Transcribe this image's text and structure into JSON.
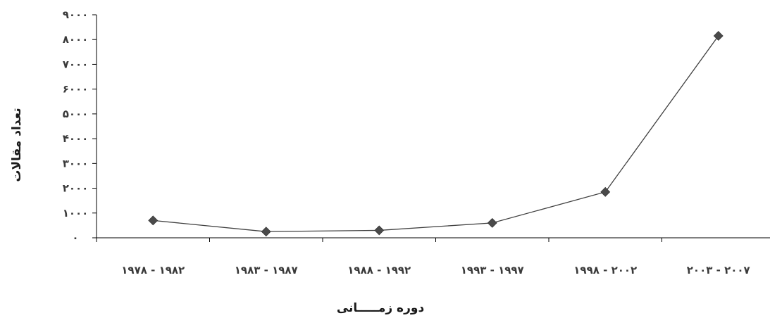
{
  "chart_data": {
    "type": "line",
    "title": "",
    "xlabel": "دوره زمـــــانی",
    "ylabel": "تعداد مقالات",
    "categories": [
      "۱۹۷۸-۱۹۸۲",
      "۱۹۸۳-۱۹۸۷",
      "۱۹۸۸-۱۹۹۲",
      "۱۹۹۳-۱۹۹۷",
      "۱۹۹۸-۲۰۰۲",
      "۲۰۰۳-۲۰۰۷"
    ],
    "category_labels": [
      "۱۹۷۸ - ۱۹۸۲",
      "۱۹۸۳ - ۱۹۸۷",
      "۱۹۸۸ - ۱۹۹۲",
      "۱۹۹۳ - ۱۹۹۷",
      "۱۹۹۸ - ۲۰۰۲",
      "۲۰۰۳ - ۲۰۰۷"
    ],
    "values": [
      700,
      250,
      300,
      600,
      1850,
      8150
    ],
    "ylim": [
      0,
      9000
    ],
    "yticks": [
      0,
      1000,
      2000,
      3000,
      4000,
      5000,
      6000,
      7000,
      8000,
      9000
    ],
    "ytick_labels": [
      "۰",
      "۱۰۰۰",
      "۲۰۰۰",
      "۳۰۰۰",
      "۴۰۰۰",
      "۵۰۰۰",
      "۶۰۰۰",
      "۷۰۰۰",
      "۸۰۰۰",
      "۹۰۰۰"
    ],
    "grid": false,
    "legend": "none",
    "colors": {
      "line": "#404040",
      "marker": "#4a4a4a"
    }
  }
}
